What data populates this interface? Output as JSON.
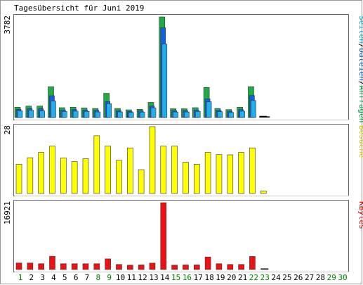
{
  "chart_data": {
    "title": "Tagesübersicht für Juni 2019",
    "type": "bar",
    "days": [
      "1",
      "2",
      "3",
      "4",
      "5",
      "6",
      "7",
      "8",
      "9",
      "10",
      "11",
      "12",
      "13",
      "14",
      "15",
      "16",
      "17",
      "18",
      "19",
      "20",
      "21",
      "22",
      "23",
      "24",
      "25",
      "26",
      "27",
      "28",
      "29",
      "30"
    ],
    "day_colors": [
      "#008000",
      "#000000",
      "#000000",
      "#000000",
      "#000000",
      "#000000",
      "#000000",
      "#008000",
      "#008000",
      "#000000",
      "#000000",
      "#000000",
      "#000000",
      "#000000",
      "#008000",
      "#008000",
      "#000000",
      "#000000",
      "#000000",
      "#000000",
      "#000000",
      "#008000",
      "#008000",
      "#000000",
      "#000000",
      "#000000",
      "#000000",
      "#000000",
      "#008000",
      "#008000"
    ],
    "panels": [
      {
        "ymax_label": "3782",
        "ymax": 3782,
        "label_parts": [
          {
            "text": "Seiten",
            "color": "#00a0c0"
          },
          {
            "text": "/",
            "color": "#000000"
          },
          {
            "text": "Dateien",
            "color": "#0050d8"
          },
          {
            "text": "/",
            "color": "#000000"
          },
          {
            "text": "Anfragen",
            "color": "#00a040"
          }
        ],
        "series": [
          {
            "key": "anfragen",
            "color": "#22aa44",
            "values": [
              390,
              430,
              430,
              1160,
              370,
              390,
              360,
              340,
              910,
              340,
              290,
              310,
              570,
              3782,
              330,
              330,
              370,
              1130,
              340,
              300,
              390,
              1160,
              60,
              0,
              0,
              0,
              0,
              0,
              0,
              0
            ]
          },
          {
            "key": "dateien",
            "color": "#1560e0",
            "values": [
              310,
              330,
              330,
              820,
              280,
              300,
              280,
              270,
              600,
              260,
              230,
              250,
              430,
              3370,
              260,
              260,
              280,
              700,
              270,
              240,
              300,
              830,
              40,
              0,
              0,
              0,
              0,
              0,
              0,
              0
            ]
          },
          {
            "key": "seiten",
            "color": "#20b0ee",
            "values": [
              250,
              270,
              250,
              620,
              230,
              240,
              230,
              210,
              520,
              210,
              190,
              200,
              360,
              2760,
              210,
              210,
              230,
              590,
              220,
              190,
              240,
              640,
              40,
              0,
              0,
              0,
              0,
              0,
              0,
              0
            ]
          }
        ]
      },
      {
        "ymax_label": "28",
        "ymax": 28,
        "label_parts": [
          {
            "text": "Besuche",
            "color": "#d8c400"
          }
        ],
        "series": [
          {
            "key": "besuche",
            "color": "#ffff00",
            "values": [
              12.3,
              15.0,
              17.2,
              19.9,
              14.9,
              13.4,
              14.6,
              24.2,
              19.9,
              13.9,
              19.1,
              10.0,
              28,
              19.9,
              19.9,
              13.1,
              12.3,
              17.2,
              16.3,
              16.2,
              17.2,
              19.1,
              1.1,
              0,
              0,
              0,
              0,
              0,
              0,
              0
            ]
          }
        ]
      },
      {
        "ymax_label": "16921",
        "ymax": 16921,
        "label_parts": [
          {
            "text": "KBytes",
            "color": "#e00000"
          }
        ],
        "series": [
          {
            "key": "kbytes",
            "color": "#ee1111",
            "values": [
              1650,
              1650,
              1470,
              3360,
              1470,
              1470,
              1470,
              1470,
              2700,
              1290,
              1110,
              1170,
              1620,
              16921,
              1110,
              1170,
              1170,
              3180,
              1470,
              1290,
              1290,
              3310,
              200,
              0,
              0,
              0,
              0,
              0,
              0,
              0
            ]
          }
        ]
      }
    ]
  }
}
